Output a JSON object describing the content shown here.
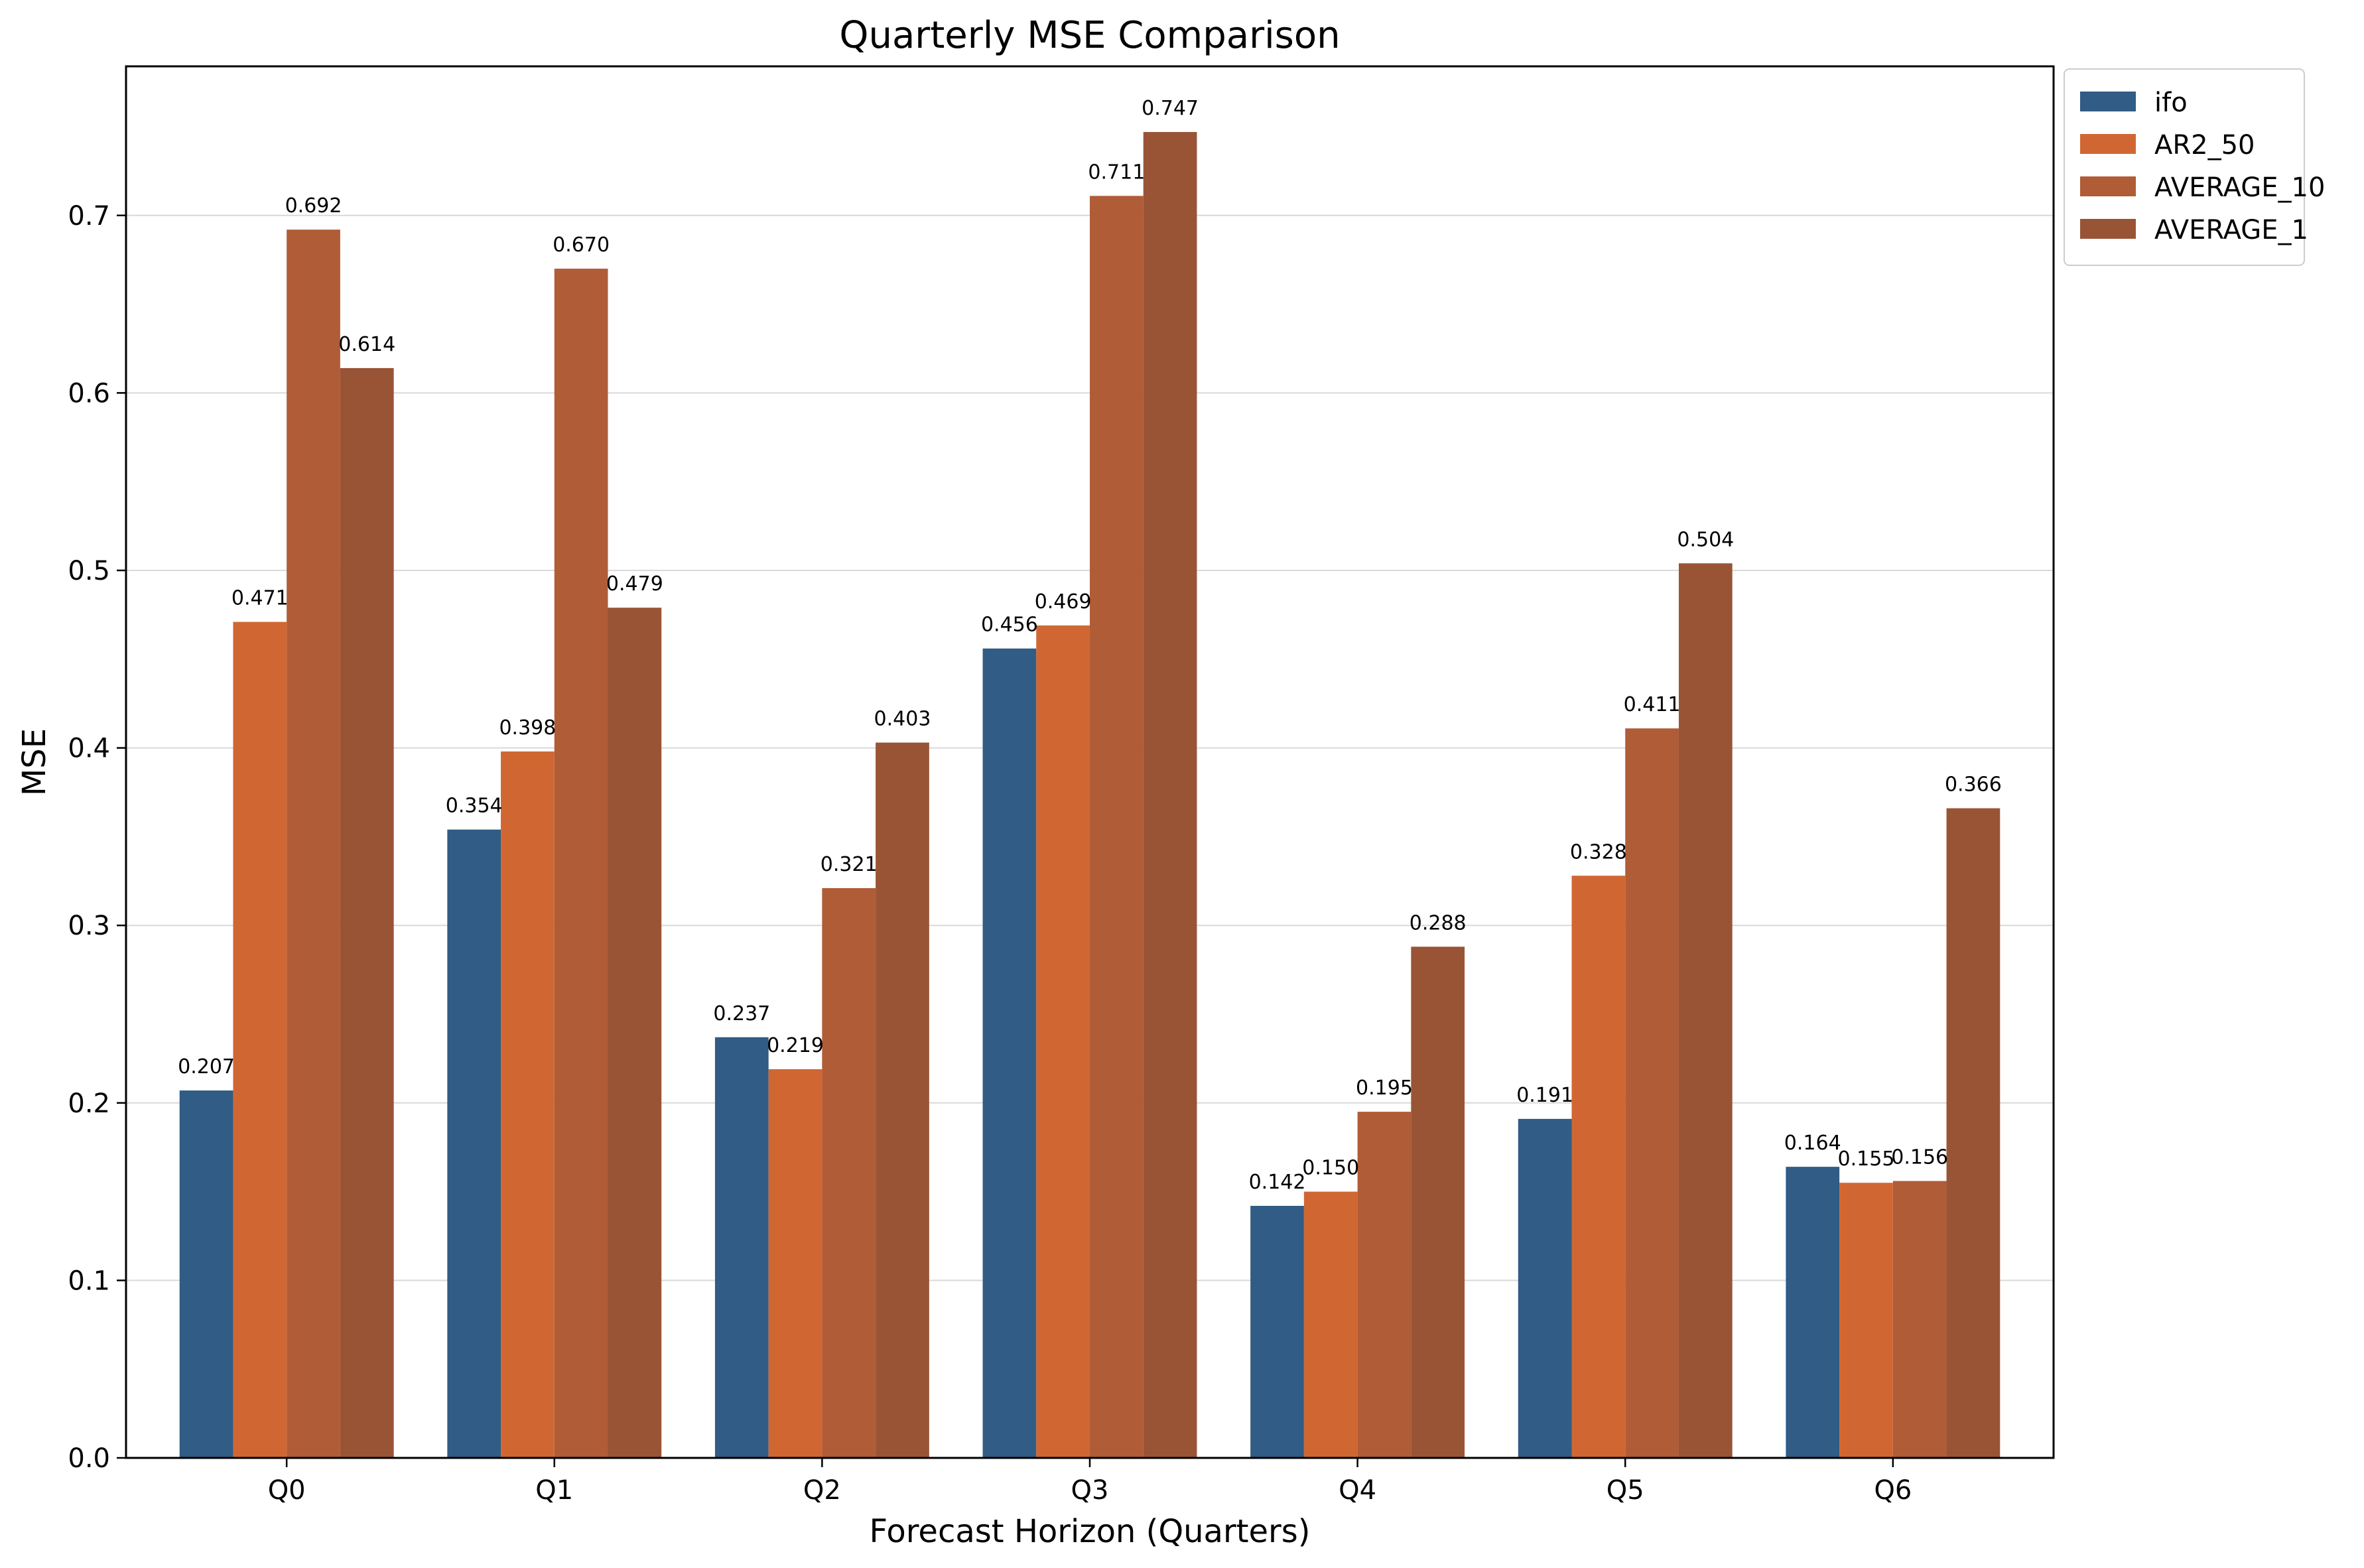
{
  "chart_data": {
    "type": "bar",
    "title": "Quarterly MSE Comparison",
    "xlabel": "Forecast Horizon (Quarters)",
    "ylabel": "MSE",
    "categories": [
      "Q0",
      "Q1",
      "Q2",
      "Q3",
      "Q4",
      "Q5",
      "Q6"
    ],
    "series": [
      {
        "name": "ifo",
        "color": "#305c85",
        "values": [
          0.207,
          0.354,
          0.237,
          0.456,
          0.142,
          0.191,
          0.164
        ],
        "labels": [
          "0.207",
          "0.354",
          "0.237",
          "0.456",
          "0.142",
          "0.191",
          "0.164"
        ]
      },
      {
        "name": "AR2_50",
        "color": "#d06733",
        "values": [
          0.471,
          0.398,
          0.219,
          0.469,
          0.15,
          0.328,
          0.155
        ],
        "labels": [
          "0.471",
          "0.398",
          "0.219",
          "0.469",
          "0.150",
          "0.328",
          "0.155"
        ]
      },
      {
        "name": "AVERAGE_10",
        "color": "#b05c37",
        "values": [
          0.692,
          0.67,
          0.321,
          0.711,
          0.195,
          0.411,
          0.156
        ],
        "labels": [
          "0.692",
          "0.670",
          "0.321",
          "0.711",
          "0.195",
          "0.411",
          "0.156"
        ]
      },
      {
        "name": "AVERAGE_1",
        "color": "#995436",
        "values": [
          0.614,
          0.479,
          0.403,
          0.747,
          0.288,
          0.504,
          0.366
        ],
        "labels": [
          "0.614",
          "0.479",
          "0.403",
          "0.747",
          "0.288",
          "0.504",
          "0.366"
        ]
      }
    ],
    "yticks": [
      0.0,
      0.1,
      0.2,
      0.3,
      0.4,
      0.5,
      0.6,
      0.7
    ],
    "ytick_labels": [
      "0.0",
      "0.1",
      "0.2",
      "0.3",
      "0.4",
      "0.5",
      "0.6",
      "0.7"
    ],
    "ylim": [
      0,
      0.784
    ],
    "grid": "y-major",
    "legend": "outside-top-right"
  }
}
